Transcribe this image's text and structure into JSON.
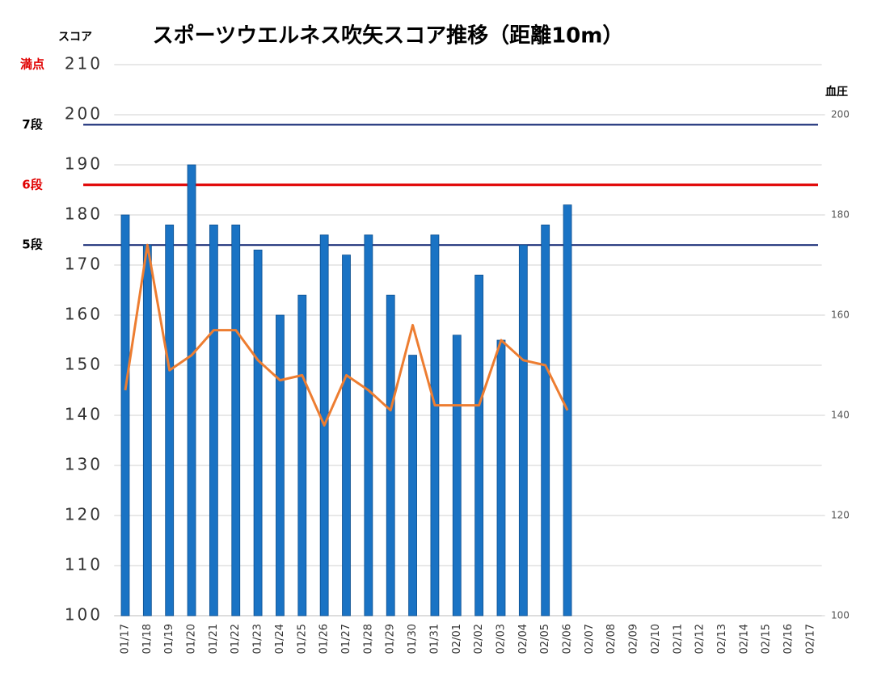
{
  "chart_data": {
    "type": "bar",
    "title": "スポーツウエルネス吹矢スコア推移（距離10m）",
    "y_label": "スコア",
    "y2_label": "血圧",
    "categories": [
      "01/17",
      "01/18",
      "01/19",
      "01/20",
      "01/21",
      "01/22",
      "01/23",
      "01/24",
      "01/25",
      "01/26",
      "01/27",
      "01/28",
      "01/29",
      "01/30",
      "01/31",
      "02/01",
      "02/02",
      "02/03",
      "02/04",
      "02/05",
      "02/06",
      "02/07",
      "02/08",
      "02/09",
      "02/10",
      "02/11",
      "02/12",
      "02/13",
      "02/14",
      "02/15",
      "02/16",
      "02/17"
    ],
    "series": [
      {
        "name": "スコア",
        "type": "bar",
        "color": "#1a73c4",
        "values": [
          180,
          174,
          178,
          190,
          178,
          178,
          173,
          160,
          164,
          176,
          172,
          176,
          164,
          152,
          176,
          156,
          168,
          155,
          174,
          178,
          182,
          null,
          null,
          null,
          null,
          null,
          null,
          null,
          null,
          null,
          null,
          null
        ]
      },
      {
        "name": "血圧",
        "type": "line",
        "axis": "y2",
        "color": "#ed7d31",
        "values": [
          145,
          174,
          149,
          152,
          157,
          157,
          151,
          147,
          148,
          138,
          148,
          145,
          141,
          158,
          142,
          142,
          142,
          155,
          151,
          150,
          141,
          null,
          null,
          null,
          null,
          null,
          null,
          null,
          null,
          null,
          null,
          null
        ]
      }
    ],
    "ylim": [
      100,
      210
    ],
    "yticks": [
      100,
      110,
      120,
      130,
      140,
      150,
      160,
      170,
      180,
      190,
      200,
      210
    ],
    "y2lim": [
      100,
      210
    ],
    "y2ticks": [
      100,
      120,
      140,
      160,
      180,
      200
    ],
    "grid": true,
    "reference_lines": [
      {
        "label": "満点",
        "value": 210,
        "color": "#e00000",
        "line": false
      },
      {
        "label": "7段",
        "value": 198,
        "color": "#0a1f6e",
        "line": true
      },
      {
        "label": "6段",
        "value": 186,
        "color": "#e00000",
        "line": true
      },
      {
        "label": "5段",
        "value": 174,
        "color": "#0a1f6e",
        "line": true
      }
    ]
  }
}
